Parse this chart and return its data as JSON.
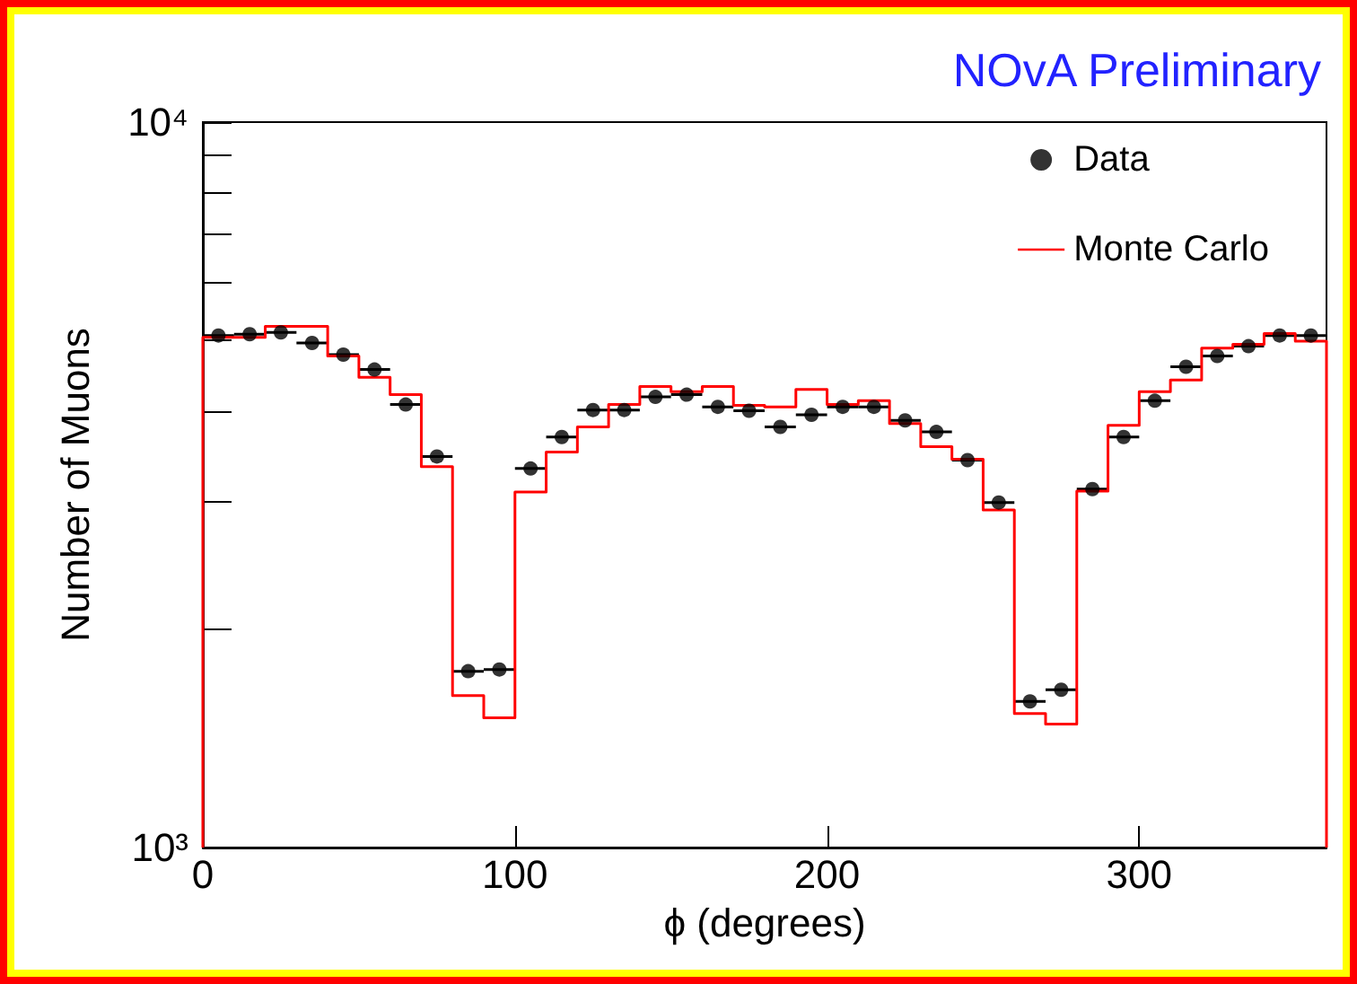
{
  "chart_data": {
    "type": "histogram",
    "xlabel": "ϕ (degrees)",
    "ylabel": "Number of Muons",
    "annotations": [
      "NOvA Preliminary"
    ],
    "bins": [
      0,
      10,
      20,
      30,
      40,
      50,
      60,
      70,
      80,
      90,
      100,
      110,
      120,
      130,
      140,
      150,
      160,
      170,
      180,
      190,
      200,
      210,
      220,
      230,
      240,
      250,
      260,
      270,
      280,
      290,
      300,
      310,
      320,
      330,
      340,
      350,
      360
    ],
    "series": [
      {
        "type": "scatter",
        "name": "Data",
        "color": "#000000",
        "x": [
          5,
          15,
          25,
          35,
          45,
          55,
          65,
          75,
          85,
          95,
          105,
          115,
          125,
          135,
          145,
          155,
          165,
          175,
          185,
          195,
          205,
          215,
          225,
          235,
          245,
          255,
          265,
          275,
          285,
          295,
          305,
          315,
          325,
          335,
          345,
          355
        ],
        "values": [
          5080,
          5100,
          5130,
          4960,
          4780,
          4560,
          4080,
          3460,
          1750,
          1760,
          3330,
          3680,
          4010,
          4010,
          4180,
          4210,
          4050,
          4000,
          3800,
          3950,
          4050,
          4050,
          3880,
          3740,
          3420,
          2990,
          1590,
          1650,
          3120,
          3680,
          4130,
          4600,
          4760,
          4910,
          5080,
          5080
        ],
        "xerrors": [
          5,
          5,
          5,
          5,
          5,
          5,
          5,
          5,
          5,
          5,
          5,
          5,
          5,
          5,
          5,
          5,
          5,
          5,
          5,
          5,
          5,
          5,
          5,
          5,
          5,
          5,
          5,
          5,
          5,
          5,
          5,
          5,
          5,
          5,
          5,
          5
        ]
      },
      {
        "name": "Monte Carlo",
        "color": "#ff0000",
        "values": [
          5050,
          5050,
          5230,
          5230,
          4760,
          4450,
          4210,
          3350,
          1620,
          1510,
          3090,
          3510,
          3800,
          4080,
          4320,
          4250,
          4320,
          4070,
          4050,
          4280,
          4080,
          4130,
          3840,
          3570,
          3430,
          2920,
          1530,
          1480,
          3100,
          3820,
          4250,
          4410,
          4880,
          4940,
          5110,
          4990
        ]
      }
    ],
    "xlim": [
      0,
      360
    ],
    "xticks": [
      0,
      100,
      200,
      300
    ],
    "ylim": [
      1000,
      10000
    ],
    "yticks": [
      {
        "value": 1000,
        "label": "10³"
      },
      {
        "value": 2000,
        "label": null
      },
      {
        "value": 3000,
        "label": null
      },
      {
        "value": 4000,
        "label": null
      },
      {
        "value": 5000,
        "label": null
      },
      {
        "value": 6000,
        "label": null
      },
      {
        "value": 7000,
        "label": null
      },
      {
        "value": 8000,
        "label": null
      },
      {
        "value": 9000,
        "label": null
      },
      {
        "value": 10000,
        "label": "10⁴"
      }
    ],
    "log": "y",
    "marker": "circle",
    "legend": "top right",
    "grid": false
  }
}
